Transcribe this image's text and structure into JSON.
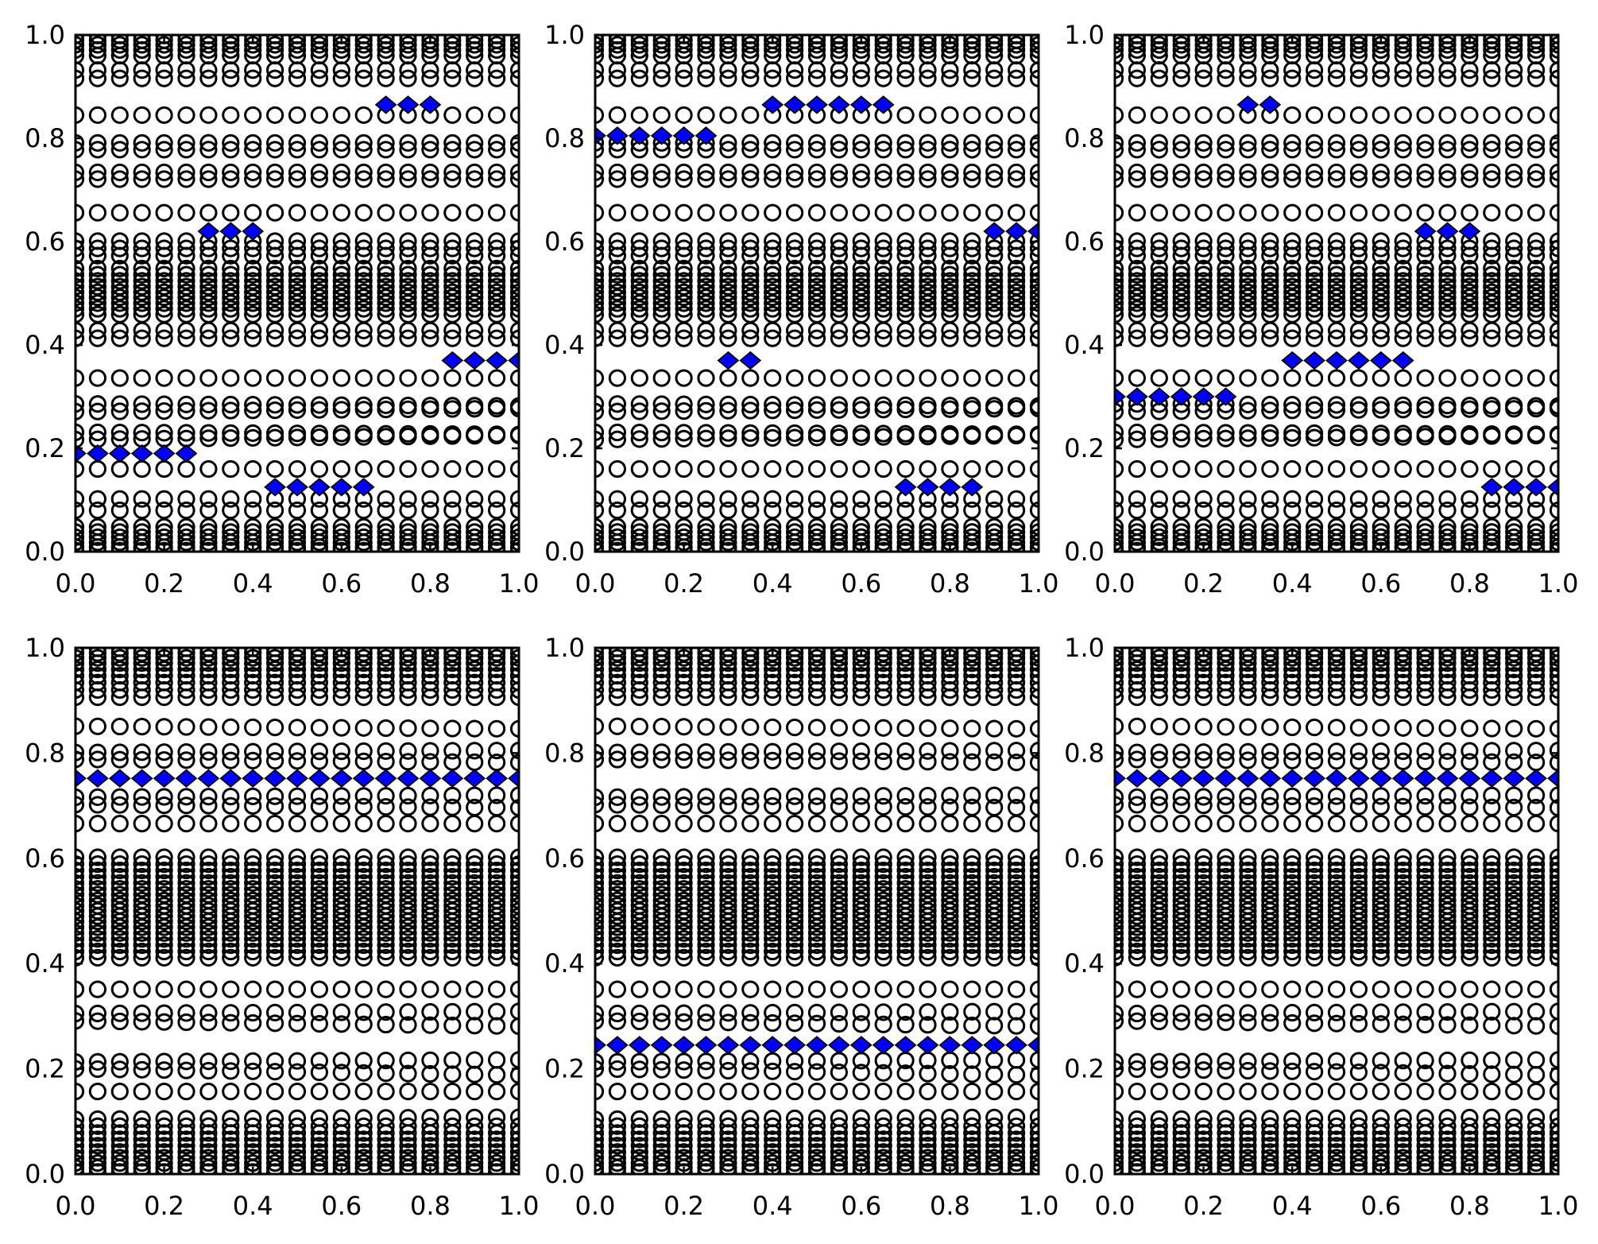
{
  "figure": {
    "background_color": "#ffffff",
    "grid_rows": 2,
    "grid_cols": 3
  },
  "chart_data": {
    "type": "scatter",
    "layout": "2x3-subplot-grid",
    "x_values": [
      0.0,
      0.05,
      0.1,
      0.15,
      0.2,
      0.25,
      0.3,
      0.35,
      0.4,
      0.45,
      0.5,
      0.55,
      0.6,
      0.65,
      0.7,
      0.75,
      0.8,
      0.85,
      0.9,
      0.95,
      1.0
    ],
    "axis": {
      "xlim": [
        0.0,
        1.0
      ],
      "ylim": [
        0.0,
        1.0
      ],
      "xticks": [
        0.0,
        0.2,
        0.4,
        0.6,
        0.8,
        1.0
      ],
      "yticks": [
        0.0,
        0.2,
        0.4,
        0.6,
        0.8,
        1.0
      ],
      "x_tick_labels": [
        "0.0",
        "0.2",
        "0.4",
        "0.6",
        "0.8",
        "1.0"
      ],
      "y_tick_labels": [
        "0.0",
        "0.2",
        "0.4",
        "0.6",
        "0.8",
        "1.0"
      ],
      "tick_direction": "in",
      "grid": false,
      "spine_color": "#000000"
    },
    "markers": {
      "circle": {
        "shape": "open-circle",
        "edge_color": "#000000",
        "fill": "none"
      },
      "diamond": {
        "shape": "filled-diamond",
        "fill_color": "#0000ff",
        "edge_color": "#000000"
      }
    },
    "spectra": {
      "top_spectrum": [
        0.999,
        0.99,
        0.981,
        0.971,
        0.96,
        0.932,
        0.916,
        0.845,
        0.791,
        0.778,
        0.734,
        0.721,
        0.656,
        0.601,
        0.587,
        0.573,
        0.548,
        0.536,
        0.524,
        0.513,
        0.502,
        0.492,
        0.481,
        0.47,
        0.459,
        0.428,
        0.413,
        0.336,
        [
          0.286,
          -0.004
        ],
        [
          0.271,
          0.006
        ],
        [
          0.231,
          -0.004
        ],
        [
          0.217,
          0.008
        ],
        0.16,
        0.102,
        0.08,
        0.048,
        0.038,
        0.028,
        0.018,
        0.009,
        0.002
      ],
      "bottom_spectrum": [
        0.999,
        0.99,
        0.981,
        0.971,
        0.959,
        0.947,
        0.934,
        0.92,
        0.906,
        [
          0.851,
          -0.005
        ],
        [
          0.801,
          0.004
        ],
        [
          0.788,
          -0.006
        ],
        [
          0.716,
          0.004
        ],
        [
          0.702,
          -0.006
        ],
        0.666,
        0.602,
        0.589,
        0.577,
        0.565,
        0.553,
        0.542,
        0.531,
        0.52,
        0.51,
        0.5,
        0.49,
        0.48,
        0.469,
        0.458,
        0.447,
        0.435,
        0.423,
        0.411,
        0.351,
        [
          0.305,
          0.004
        ],
        [
          0.291,
          -0.01
        ],
        [
          0.213,
          0.004
        ],
        [
          0.2,
          -0.012
        ],
        0.157,
        [
          0.104,
          0.004
        ],
        0.091,
        0.078,
        0.066,
        0.054,
        0.042,
        0.031,
        0.021,
        0.012,
        0.004
      ]
    },
    "subplots": [
      {
        "name": "top-left",
        "rows_ref": "top_spectrum",
        "diamond_segments": [
          {
            "y": 0.19,
            "x_start": 0.0,
            "x_end": 0.25
          },
          {
            "y": 0.62,
            "x_start": 0.3,
            "x_end": 0.4
          },
          {
            "y": 0.125,
            "x_start": 0.45,
            "x_end": 0.65
          },
          {
            "y": 0.865,
            "x_start": 0.7,
            "x_end": 0.8
          },
          {
            "y": 0.37,
            "x_start": 0.85,
            "x_end": 1.0
          }
        ]
      },
      {
        "name": "top-center",
        "rows_ref": "top_spectrum",
        "diamond_segments": [
          {
            "y": 0.805,
            "x_start": 0.0,
            "x_end": 0.25
          },
          {
            "y": 0.37,
            "x_start": 0.3,
            "x_end": 0.35
          },
          {
            "y": 0.865,
            "x_start": 0.4,
            "x_end": 0.65
          },
          {
            "y": 0.125,
            "x_start": 0.7,
            "x_end": 0.85
          },
          {
            "y": 0.62,
            "x_start": 0.9,
            "x_end": 1.0
          }
        ]
      },
      {
        "name": "top-right",
        "rows_ref": "top_spectrum",
        "diamond_segments": [
          {
            "y": 0.3,
            "x_start": 0.0,
            "x_end": 0.25
          },
          {
            "y": 0.865,
            "x_start": 0.3,
            "x_end": 0.35
          },
          {
            "y": 0.37,
            "x_start": 0.4,
            "x_end": 0.65
          },
          {
            "y": 0.62,
            "x_start": 0.7,
            "x_end": 0.8
          },
          {
            "y": 0.125,
            "x_start": 0.85,
            "x_end": 1.0
          }
        ]
      },
      {
        "name": "bottom-left",
        "rows_ref": "bottom_spectrum",
        "diamond_segments": [
          {
            "y": 0.752,
            "x_start": 0.0,
            "x_end": 1.0
          }
        ]
      },
      {
        "name": "bottom-center",
        "rows_ref": "bottom_spectrum",
        "diamond_segments": [
          {
            "y": 0.245,
            "x_start": 0.0,
            "x_end": 1.0
          }
        ]
      },
      {
        "name": "bottom-right",
        "rows_ref": "bottom_spectrum",
        "diamond_segments": [
          {
            "y": 0.752,
            "x_start": 0.0,
            "x_end": 1.0
          }
        ]
      }
    ]
  }
}
